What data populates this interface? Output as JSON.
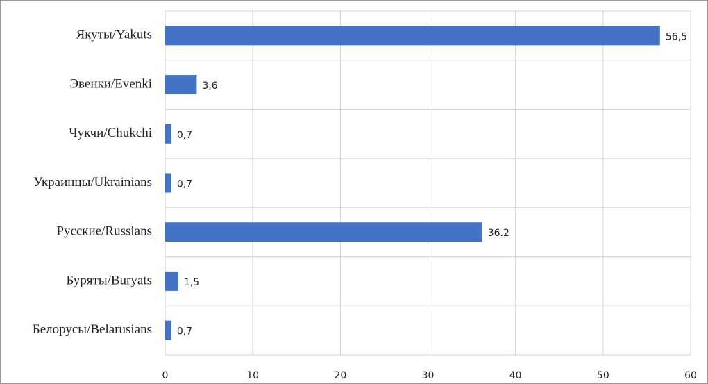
{
  "chart_data": {
    "type": "barh",
    "categories": [
      "Якуты/Yakuts",
      "Эвенки/Evenki",
      "Чукчи/Chukchi",
      "Украинцы/Ukrainians",
      "Русские/Russians",
      "Буряты/Buryats",
      "Белорусы/Belarusians"
    ],
    "values": [
      56.5,
      3.6,
      0.7,
      0.7,
      36.2,
      1.5,
      0.7
    ],
    "value_labels": [
      "56,5",
      "3,6",
      "0,7",
      "0,7",
      "36.2",
      "1,5",
      "0,7"
    ],
    "color": "#4472c4",
    "xlim": [
      0,
      60
    ],
    "xticks": [
      0,
      10,
      20,
      30,
      40,
      50,
      60
    ],
    "grid": true
  }
}
